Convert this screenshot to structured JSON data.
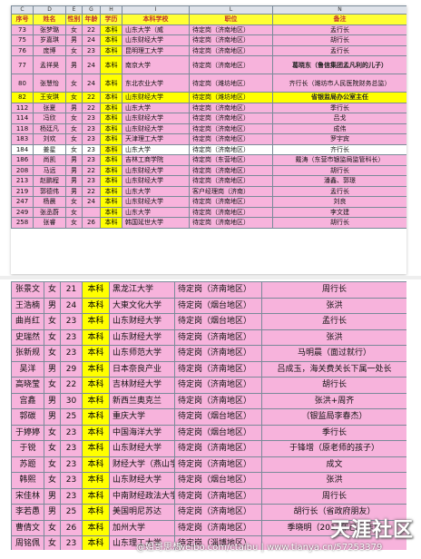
{
  "sheet1": {
    "column_letters": [
      "C",
      "D",
      "E",
      "G",
      "H",
      "I",
      "L",
      "N"
    ],
    "header": [
      "序号",
      "姓名",
      "性别",
      "年龄",
      "学历",
      "本科学校",
      "职位",
      "备注"
    ],
    "rows": [
      {
        "no": "73",
        "name": "张梦璐",
        "sex": "女",
        "age": "22",
        "edu": "本科",
        "school": "山东大学（威",
        "job": "待定岗（济南地区）",
        "note": "孟行长",
        "style": "pink"
      },
      {
        "no": "75",
        "name": "岁嘉琪",
        "sex": "男",
        "age": "24",
        "edu": "本科",
        "school": "山东财经大学",
        "job": "待定岗（济南地区）",
        "note": "胡行长",
        "style": "pink"
      },
      {
        "no": "76",
        "name": "庞博",
        "sex": "女",
        "age": "23",
        "edu": "本科",
        "school": "昆明理工大学",
        "job": "待定岗（济南地区）",
        "note": "孟行长",
        "style": "pink"
      },
      {
        "no": "77",
        "name": "孟祥昊",
        "sex": "男",
        "age": "24",
        "edu": "本科",
        "school": "南京大学",
        "job": "待定岗（济南地区）",
        "note": "葛晓东（鲁信集团孟凡利的儿子）",
        "style": "pink",
        "tall": true,
        "bold": true
      },
      {
        "no": "80",
        "name": "张慧怡",
        "sex": "女",
        "age": "24",
        "edu": "本科",
        "school": "东北农业大学",
        "job": "待定岗（潍坊地区）",
        "note": "齐行长（潍坊市人民医院财务总监）",
        "style": "pink",
        "tall": true
      },
      {
        "no": "82",
        "name": "王安琪",
        "sex": "女",
        "age": "22",
        "edu": "本科",
        "school": "山东财经大学",
        "job": "待定岗（潍坊地区）",
        "note": "省银监局办公室主任",
        "style": "yellow",
        "bold": true
      },
      {
        "no": "112",
        "name": "张夏",
        "sex": "男",
        "age": "22",
        "edu": "本科",
        "school": "山东大学",
        "job": "待定岗（济南地区）",
        "note": "季行长",
        "style": "pink"
      },
      {
        "no": "114",
        "name": "冯欣",
        "sex": "女",
        "age": "23",
        "edu": "本科",
        "school": "山东财经大学",
        "job": "待定岗（济南地区）",
        "note": "吕戈",
        "style": "pink"
      },
      {
        "no": "118",
        "name": "杨廷凡",
        "sex": "女",
        "age": "23",
        "edu": "本科",
        "school": "山东财经大学",
        "job": "待定岗（济南地区）",
        "note": "成伟",
        "style": "pink"
      },
      {
        "no": "183",
        "name": "刘欢",
        "sex": "女",
        "age": "23",
        "edu": "本科",
        "school": "天津理工大学",
        "job": "待定岗（济南地区）",
        "note": "罗宇宾",
        "style": "pink"
      },
      {
        "no": "184",
        "name": "姜星",
        "sex": "女",
        "age": "23",
        "edu": "本科",
        "school": "山东大学",
        "job": "待定岗（济南地区）",
        "note": "齐行长",
        "style": "white"
      },
      {
        "no": "186",
        "name": "尚凯",
        "sex": "男",
        "age": "23",
        "edu": "本科",
        "school": "吉林工商学院",
        "job": "待定岗（东营地区）",
        "note": "戴涛（东营市银监局监管科长）",
        "style": "pink"
      },
      {
        "no": "208",
        "name": "马远",
        "sex": "男",
        "age": "22",
        "edu": "本科",
        "school": "山东财经大学",
        "job": "待定岗（济南地区）",
        "note": "胡行长",
        "style": "pink"
      },
      {
        "no": "213",
        "name": "赵鹏程",
        "sex": "男",
        "age": "23",
        "edu": "本科",
        "school": "山东财经大学",
        "job": "待定岗（济南地区）",
        "note": "潘鑫、郭璟",
        "style": "pink"
      },
      {
        "no": "219",
        "name": "郭德伟",
        "sex": "男",
        "age": "22",
        "edu": "本科",
        "school": "山东大学",
        "job": "客户经理岗（济南）",
        "note": "孟行长",
        "style": "pink"
      },
      {
        "no": "247",
        "name": "杨晨",
        "sex": "女",
        "age": "24",
        "edu": "本科",
        "school": "山东财经大学",
        "job": "待定岗（济南地区）",
        "note": "刘良",
        "style": "pink"
      },
      {
        "no": "249",
        "name": "张丞蔚",
        "sex": "女",
        "age": "",
        "edu": "本科",
        "school": "山东大学",
        "job": "待定岗（济南地区）",
        "note": "李文建",
        "style": "pink"
      },
      {
        "no": "258",
        "name": "张睿",
        "sex": "女",
        "age": "26",
        "edu": "本科",
        "school": "韩国延世大学",
        "job": "待定岗（济南地区）",
        "note": "胡行长",
        "style": "pink"
      }
    ]
  },
  "sheet2": {
    "rows": [
      {
        "name": "张景文",
        "sex": "女",
        "age": "21",
        "edu": "本科",
        "school": "黑龙江大学",
        "job": "待定岗（济南地区）",
        "note": "周行长",
        "style": "pink"
      },
      {
        "name": "王浩楠",
        "sex": "男",
        "age": "24",
        "edu": "本科",
        "school": "大東文化大学",
        "job": "待定岗（烟台地区）",
        "note": "张洪",
        "style": "pink"
      },
      {
        "name": "曲肖红",
        "sex": "女",
        "age": "23",
        "edu": "本科",
        "school": "山东财经大学",
        "job": "待定岗（烟台地区）",
        "note": "孟行长",
        "style": "pink"
      },
      {
        "name": "史瑞然",
        "sex": "女",
        "age": "23",
        "edu": "本科",
        "school": "山东财经大学",
        "job": "待定岗（济南地区）",
        "note": "张洪",
        "style": "pink"
      },
      {
        "name": "张新规",
        "sex": "女",
        "age": "23",
        "edu": "本科",
        "school": "山东师范大学",
        "job": "待定岗（济南地区）",
        "note": "马明晨（面过就行）",
        "style": "pink"
      },
      {
        "name": "吴洋",
        "sex": "男",
        "age": "29",
        "edu": "本科",
        "school": "日本奈良产业",
        "job": "待定岗（济南地区）",
        "note": "吕成玉，海关费关长下属一处长",
        "style": "pink"
      },
      {
        "name": "高晓莹",
        "sex": "女",
        "age": "22",
        "edu": "本科",
        "school": "吉林财经大学",
        "job": "待定岗（济南地区）",
        "note": "胡行长",
        "style": "pink"
      },
      {
        "name": "宫鑫",
        "sex": "男",
        "age": "30",
        "edu": "本科",
        "school": "新西兰奥克兰",
        "job": "待定岗（济南地区）",
        "note": "张洪+周齐",
        "style": "pink"
      },
      {
        "name": "郭碳",
        "sex": "男",
        "age": "25",
        "edu": "本科",
        "school": "重庆大学",
        "job": "待定岗（烟台地区）",
        "note": "（银监局李春杰）",
        "style": "pink"
      },
      {
        "name": "于婷婷",
        "sex": "女",
        "age": "23",
        "edu": "本科",
        "school": "中国海洋大学",
        "job": "待定岗（烟台地区）",
        "note": "季行长",
        "style": "pink"
      },
      {
        "name": "于锐",
        "sex": "女",
        "age": "23",
        "edu": "本科",
        "school": "山东财经大学",
        "job": "待定岗（济南地区）",
        "note": "于锋增（原老师的孩子）",
        "style": "pink"
      },
      {
        "name": "苏题",
        "sex": "女",
        "age": "23",
        "edu": "本科",
        "school": "财经大学（燕山学",
        "job": "待定岗（济南地区）",
        "note": "成文",
        "style": "pink"
      },
      {
        "name": "韩熙",
        "sex": "女",
        "age": "23",
        "edu": "本科",
        "school": "山东财经大学",
        "job": "待定岗（烟台地区）",
        "note": "张洪",
        "style": "pink"
      },
      {
        "name": "宋佳林",
        "sex": "男",
        "age": "23",
        "edu": "本科",
        "school": "中南财经政法大学",
        "job": "待定岗（济南地区）",
        "note": "周行长",
        "style": "pink"
      },
      {
        "name": "李若愚",
        "sex": "男",
        "age": "25",
        "edu": "本科",
        "school": "美国明尼苏达",
        "job": "待定岗（济南地区）",
        "note": "胡行长（省政府朋友）",
        "style": "pink"
      },
      {
        "name": "曹倩文",
        "sex": "女",
        "age": "26",
        "edu": "本科",
        "school": "加州大学",
        "job": "待定岗（济南地区）",
        "note": "季晓明（2012年已工作）",
        "style": "pink"
      },
      {
        "name": "周铭佩",
        "sex": "女",
        "age": "23",
        "edu": "本科",
        "school": "山东理工大学",
        "job": "待定岗（淄博地区）",
        "note": "",
        "style": "pink"
      },
      {
        "name": "赵季",
        "sex": "男",
        "age": "24",
        "edu": "本科",
        "school": "美国伦敦大学",
        "job": "待定岗（济南地区）",
        "note": "",
        "style": "pink"
      }
    ]
  },
  "watermark": {
    "site": "天涯社区",
    "weibo": "@姐哥思想",
    "url": "weibo.com/ctaibu | www.tianya.cn/57253379"
  }
}
